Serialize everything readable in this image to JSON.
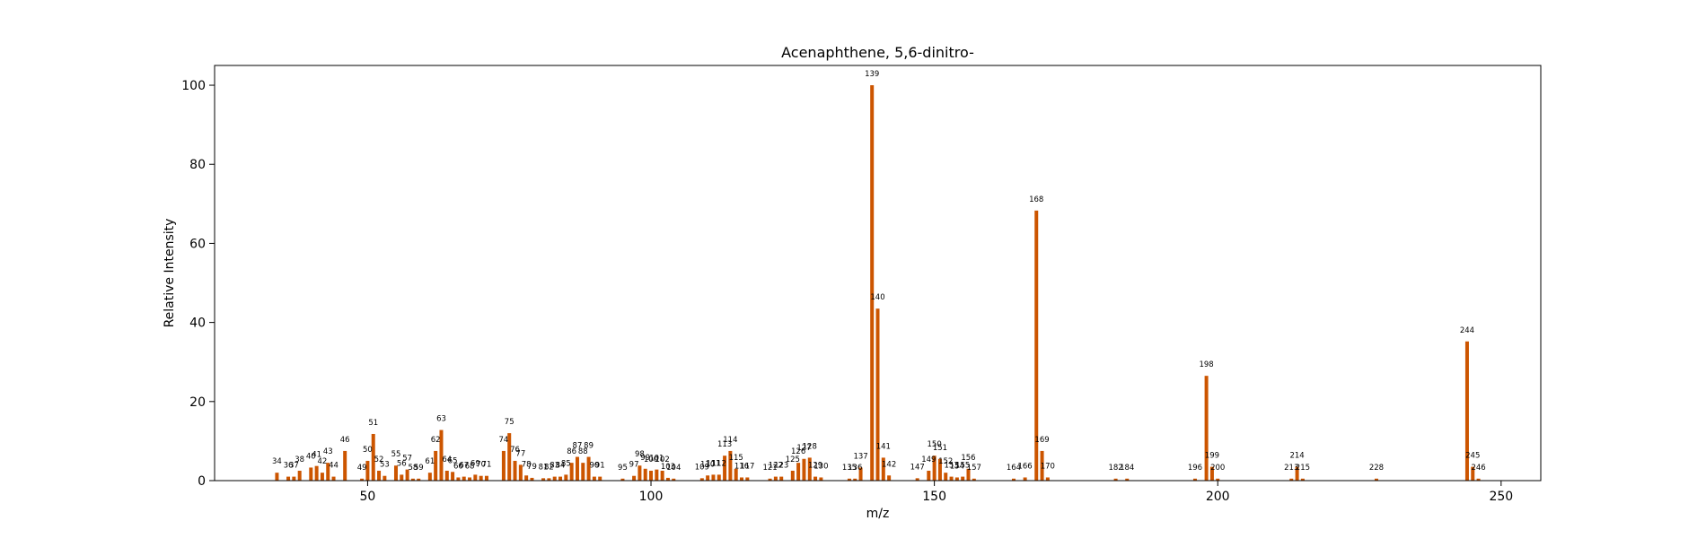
{
  "chart_data": {
    "type": "bar",
    "title": "Acenaphthene, 5,6-dinitro-",
    "xlabel": "m/z",
    "ylabel": "Relative Intensity",
    "xlim": [
      23,
      257
    ],
    "ylim": [
      0,
      105
    ],
    "x_ticks": [
      50,
      100,
      150,
      200,
      250
    ],
    "y_ticks": [
      0,
      20,
      40,
      60,
      80,
      100
    ],
    "grid": false,
    "bar_color": "#cc5500",
    "peaks": [
      {
        "mz": 34,
        "intensity": 2.0
      },
      {
        "mz": 36,
        "intensity": 1.0
      },
      {
        "mz": 37,
        "intensity": 1.0
      },
      {
        "mz": 38,
        "intensity": 2.5
      },
      {
        "mz": 40,
        "intensity": 3.3
      },
      {
        "mz": 41,
        "intensity": 3.7
      },
      {
        "mz": 42,
        "intensity": 2.0
      },
      {
        "mz": 43,
        "intensity": 4.5
      },
      {
        "mz": 44,
        "intensity": 1.0
      },
      {
        "mz": 46,
        "intensity": 7.5
      },
      {
        "mz": 49,
        "intensity": 0.5
      },
      {
        "mz": 50,
        "intensity": 5.0
      },
      {
        "mz": 51,
        "intensity": 11.8
      },
      {
        "mz": 52,
        "intensity": 2.5
      },
      {
        "mz": 53,
        "intensity": 1.2
      },
      {
        "mz": 55,
        "intensity": 3.8
      },
      {
        "mz": 56,
        "intensity": 1.5
      },
      {
        "mz": 57,
        "intensity": 2.8
      },
      {
        "mz": 58,
        "intensity": 0.5
      },
      {
        "mz": 59,
        "intensity": 0.5
      },
      {
        "mz": 61,
        "intensity": 2.0
      },
      {
        "mz": 62,
        "intensity": 7.5
      },
      {
        "mz": 63,
        "intensity": 12.8
      },
      {
        "mz": 64,
        "intensity": 2.5
      },
      {
        "mz": 65,
        "intensity": 2.2
      },
      {
        "mz": 66,
        "intensity": 0.8
      },
      {
        "mz": 67,
        "intensity": 1.0
      },
      {
        "mz": 68,
        "intensity": 0.8
      },
      {
        "mz": 69,
        "intensity": 1.5
      },
      {
        "mz": 70,
        "intensity": 1.2
      },
      {
        "mz": 71,
        "intensity": 1.2
      },
      {
        "mz": 74,
        "intensity": 7.5
      },
      {
        "mz": 75,
        "intensity": 12.0
      },
      {
        "mz": 76,
        "intensity": 5.0
      },
      {
        "mz": 77,
        "intensity": 4.0
      },
      {
        "mz": 78,
        "intensity": 1.3
      },
      {
        "mz": 79,
        "intensity": 0.7
      },
      {
        "mz": 81,
        "intensity": 0.6
      },
      {
        "mz": 82,
        "intensity": 0.6
      },
      {
        "mz": 83,
        "intensity": 1.0
      },
      {
        "mz": 84,
        "intensity": 1.0
      },
      {
        "mz": 85,
        "intensity": 1.5
      },
      {
        "mz": 86,
        "intensity": 4.5
      },
      {
        "mz": 87,
        "intensity": 6.0
      },
      {
        "mz": 88,
        "intensity": 4.5
      },
      {
        "mz": 89,
        "intensity": 6.0
      },
      {
        "mz": 90,
        "intensity": 1.0
      },
      {
        "mz": 91,
        "intensity": 1.0
      },
      {
        "mz": 95,
        "intensity": 0.5
      },
      {
        "mz": 97,
        "intensity": 1.2
      },
      {
        "mz": 98,
        "intensity": 3.8
      },
      {
        "mz": 99,
        "intensity": 3.0
      },
      {
        "mz": 100,
        "intensity": 2.5
      },
      {
        "mz": 101,
        "intensity": 2.8
      },
      {
        "mz": 102,
        "intensity": 2.5
      },
      {
        "mz": 103,
        "intensity": 0.7
      },
      {
        "mz": 104,
        "intensity": 0.5
      },
      {
        "mz": 109,
        "intensity": 0.6
      },
      {
        "mz": 110,
        "intensity": 1.3
      },
      {
        "mz": 111,
        "intensity": 1.5
      },
      {
        "mz": 112,
        "intensity": 1.5
      },
      {
        "mz": 113,
        "intensity": 6.3
      },
      {
        "mz": 114,
        "intensity": 7.5
      },
      {
        "mz": 115,
        "intensity": 3.0
      },
      {
        "mz": 116,
        "intensity": 0.8
      },
      {
        "mz": 117,
        "intensity": 0.8
      },
      {
        "mz": 121,
        "intensity": 0.5
      },
      {
        "mz": 122,
        "intensity": 1.0
      },
      {
        "mz": 123,
        "intensity": 1.0
      },
      {
        "mz": 125,
        "intensity": 2.5
      },
      {
        "mz": 126,
        "intensity": 4.5
      },
      {
        "mz": 127,
        "intensity": 5.5
      },
      {
        "mz": 128,
        "intensity": 5.8
      },
      {
        "mz": 129,
        "intensity": 1.0
      },
      {
        "mz": 130,
        "intensity": 0.8
      },
      {
        "mz": 135,
        "intensity": 0.5
      },
      {
        "mz": 136,
        "intensity": 0.5
      },
      {
        "mz": 137,
        "intensity": 3.3
      },
      {
        "mz": 139,
        "intensity": 100.0
      },
      {
        "mz": 140,
        "intensity": 43.5
      },
      {
        "mz": 141,
        "intensity": 5.8
      },
      {
        "mz": 142,
        "intensity": 1.3
      },
      {
        "mz": 147,
        "intensity": 0.6
      },
      {
        "mz": 149,
        "intensity": 2.5
      },
      {
        "mz": 150,
        "intensity": 6.3
      },
      {
        "mz": 151,
        "intensity": 5.5
      },
      {
        "mz": 152,
        "intensity": 2.0
      },
      {
        "mz": 153,
        "intensity": 1.0
      },
      {
        "mz": 154,
        "intensity": 0.8
      },
      {
        "mz": 155,
        "intensity": 1.0
      },
      {
        "mz": 156,
        "intensity": 3.0
      },
      {
        "mz": 157,
        "intensity": 0.5
      },
      {
        "mz": 164,
        "intensity": 0.5
      },
      {
        "mz": 166,
        "intensity": 0.8
      },
      {
        "mz": 168,
        "intensity": 68.3
      },
      {
        "mz": 169,
        "intensity": 7.5
      },
      {
        "mz": 170,
        "intensity": 0.8
      },
      {
        "mz": 182,
        "intensity": 0.5
      },
      {
        "mz": 184,
        "intensity": 0.5
      },
      {
        "mz": 196,
        "intensity": 0.5
      },
      {
        "mz": 198,
        "intensity": 26.5
      },
      {
        "mz": 199,
        "intensity": 3.5
      },
      {
        "mz": 200,
        "intensity": 0.5
      },
      {
        "mz": 213,
        "intensity": 0.5
      },
      {
        "mz": 214,
        "intensity": 3.5
      },
      {
        "mz": 215,
        "intensity": 0.5
      },
      {
        "mz": 228,
        "intensity": 0.5
      },
      {
        "mz": 244,
        "intensity": 35.2
      },
      {
        "mz": 245,
        "intensity": 3.5
      },
      {
        "mz": 246,
        "intensity": 0.5
      }
    ]
  }
}
